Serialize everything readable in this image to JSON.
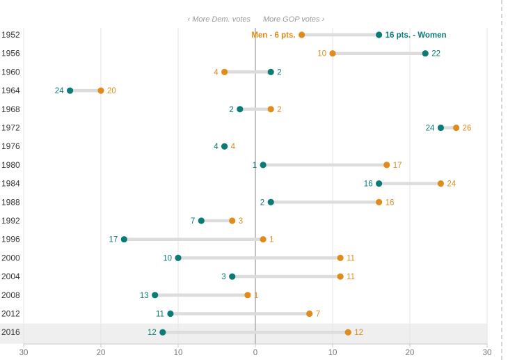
{
  "chart_data": {
    "type": "dot-range",
    "direction_labels": {
      "left": "‹ More Dem. votes",
      "right": "More GOP votes ›"
    },
    "series": [
      {
        "name": "Men",
        "label": "Men - 6 pts.",
        "color": "#e08c1c"
      },
      {
        "name": "Women",
        "label": "16 pts. - Women",
        "color": "#0b7b76"
      }
    ],
    "xlim": [
      -30,
      30
    ],
    "x_ticks": [
      -30,
      -20,
      -10,
      0,
      10,
      20,
      30
    ],
    "x_tick_labels": [
      "30",
      "20",
      "10",
      "0",
      "10",
      "20",
      "30"
    ],
    "grid": true,
    "highlight_year": "2016",
    "rows": [
      {
        "year": "1952",
        "men": 6,
        "women": 16,
        "men_label": "Men - 6 pts.",
        "women_label": "16 pts. - Women"
      },
      {
        "year": "1956",
        "men": 10,
        "women": 22,
        "men_label": "10",
        "women_label": "22"
      },
      {
        "year": "1960",
        "men": -4,
        "women": 2,
        "men_label": "4",
        "women_label": "2"
      },
      {
        "year": "1964",
        "men": -20,
        "women": -24,
        "men_label": "20",
        "women_label": "24"
      },
      {
        "year": "1968",
        "men": 2,
        "women": -2,
        "men_label": "2",
        "women_label": "2"
      },
      {
        "year": "1972",
        "men": 26,
        "women": 24,
        "men_label": "26",
        "women_label": "24"
      },
      {
        "year": "1976",
        "men": -4,
        "women": -4,
        "men_label": "4",
        "women_label": "4"
      },
      {
        "year": "1980",
        "men": 17,
        "women": 1,
        "men_label": "17",
        "women_label": "1"
      },
      {
        "year": "1984",
        "men": 24,
        "women": 16,
        "men_label": "24",
        "women_label": "16"
      },
      {
        "year": "1988",
        "men": 16,
        "women": 2,
        "men_label": "16",
        "women_label": "2"
      },
      {
        "year": "1992",
        "men": -3,
        "women": -7,
        "men_label": "3",
        "women_label": "7"
      },
      {
        "year": "1996",
        "men": 1,
        "women": -17,
        "men_label": "1",
        "women_label": "17"
      },
      {
        "year": "2000",
        "men": 11,
        "women": -10,
        "men_label": "11",
        "women_label": "10"
      },
      {
        "year": "2004",
        "men": 11,
        "women": -3,
        "men_label": "11",
        "women_label": "3"
      },
      {
        "year": "2008",
        "men": -1,
        "women": -13,
        "men_label": "1",
        "women_label": "13"
      },
      {
        "year": "2012",
        "men": 7,
        "women": -11,
        "men_label": "7",
        "women_label": "11"
      },
      {
        "year": "2016",
        "men": 12,
        "women": -12,
        "men_label": "12",
        "women_label": "12"
      }
    ]
  }
}
